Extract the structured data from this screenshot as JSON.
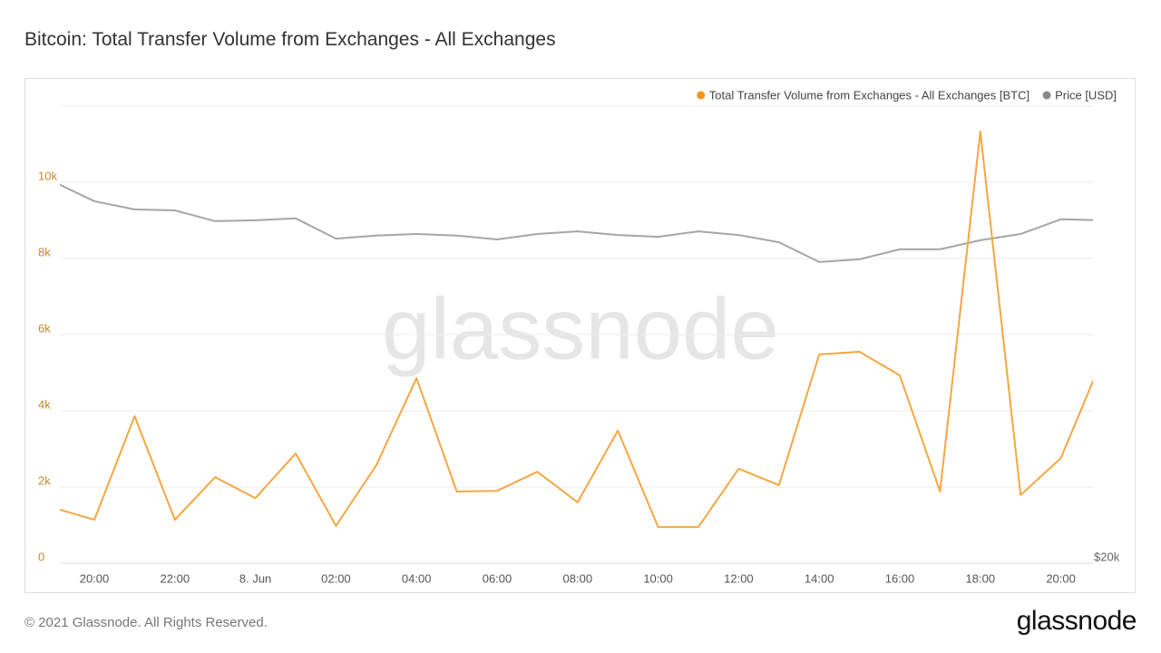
{
  "title": "Bitcoin: Total Transfer Volume from Exchanges - All Exchanges",
  "footer": "© 2021 Glassnode. All Rights Reserved.",
  "logo": "glassnode",
  "chart_data": {
    "type": "line",
    "watermark": "glassnode",
    "categories": [
      null,
      "20:00",
      null,
      "22:00",
      null,
      "8. Jun",
      null,
      "02:00",
      null,
      "04:00",
      null,
      "06:00",
      null,
      "08:00",
      null,
      "10:00",
      null,
      "12:00",
      null,
      "14:00",
      null,
      "16:00",
      null,
      "18:00",
      null,
      "20:00",
      null
    ],
    "series": [
      {
        "name": "Total Transfer Volume from Exchanges - All Exchanges [BTC]",
        "color": "#f7931a",
        "line_color": "#f5a742",
        "values": [
          1450,
          1140,
          3860,
          1140,
          2260,
          1710,
          2880,
          980,
          2570,
          4860,
          1880,
          1900,
          2400,
          1600,
          3480,
          950,
          950,
          2480,
          2050,
          5480,
          5550,
          4930,
          1880,
          11330,
          1790,
          2760,
          5290
        ]
      },
      {
        "name": "Price [USD]",
        "color": "#888888",
        "line_color": "#a6a6a6",
        "axis": "y2",
        "values": [
          35650,
          34630,
          34200,
          34150,
          33600,
          33640,
          33740,
          32720,
          32870,
          32950,
          32870,
          32680,
          32950,
          33080,
          32900,
          32810,
          33080,
          32900,
          32540,
          31580,
          31710,
          32190,
          32190,
          32640,
          32950,
          33690,
          33640
        ]
      }
    ],
    "ylim": [
      0,
      12000
    ],
    "yticks": [
      0,
      {
        "value": 2000,
        "label": "2k"
      },
      {
        "value": 4000,
        "label": "4k"
      },
      {
        "value": 6000,
        "label": "6k"
      },
      {
        "value": 8000,
        "label": "8k"
      },
      {
        "value": 10000,
        "label": "10k"
      }
    ],
    "y2lim": [
      20000,
      40000
    ],
    "y2ticks": [
      {
        "value": 20000,
        "label": "$20k"
      }
    ],
    "y2scale": "log",
    "grid": true,
    "legend": "top-right"
  }
}
